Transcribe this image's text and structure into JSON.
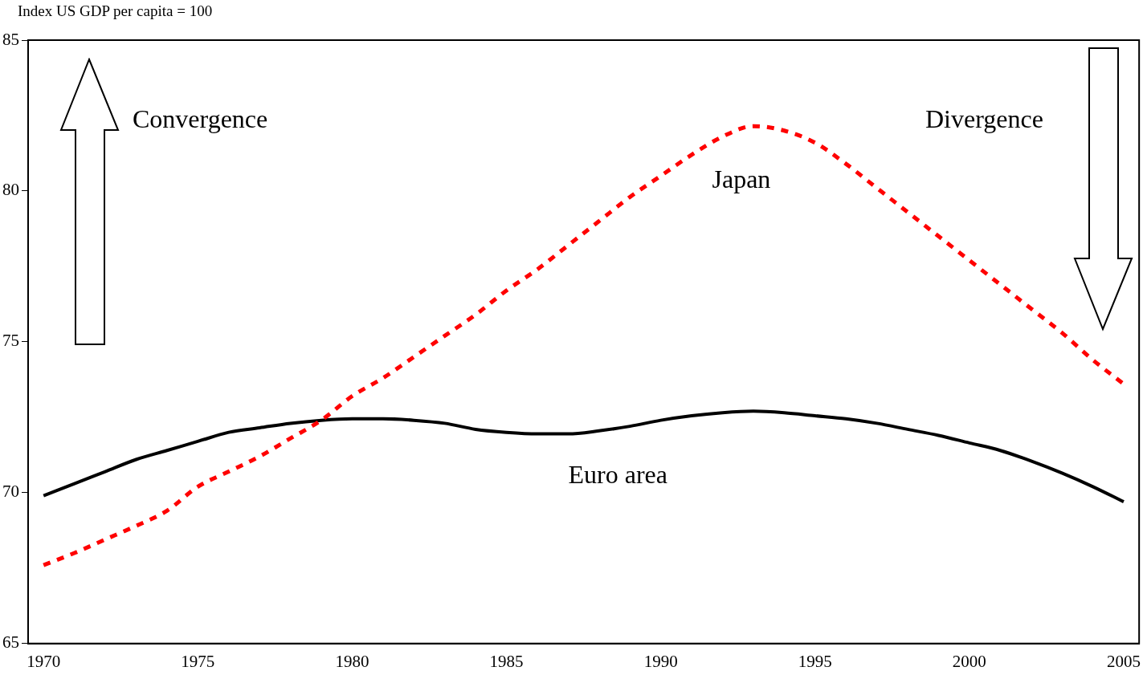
{
  "chart_data": {
    "type": "line",
    "ylabel": "Index US GDP per capita = 100",
    "categories": [
      "1970",
      null,
      null,
      null,
      null,
      "1975",
      null,
      null,
      null,
      null,
      "1980",
      null,
      null,
      null,
      null,
      "1985",
      null,
      null,
      null,
      null,
      "1990",
      null,
      null,
      null,
      null,
      "1995",
      null,
      null,
      null,
      null,
      "2000",
      null,
      null,
      null,
      null,
      "2005"
    ],
    "series": [
      {
        "name": "Japan",
        "color": "#ff0000",
        "line_style": "dashed",
        "values": [
          67.6,
          68.0,
          68.45,
          68.9,
          69.4,
          70.2,
          70.7,
          71.2,
          71.8,
          72.4,
          73.2,
          73.8,
          74.5,
          75.2,
          75.9,
          76.7,
          77.4,
          78.2,
          79.0,
          79.8,
          80.5,
          81.2,
          81.8,
          82.15,
          82.0,
          81.6,
          80.9,
          80.1,
          79.3,
          78.5,
          77.7,
          76.9,
          76.1,
          75.3,
          74.4,
          73.6
        ]
      },
      {
        "name": "Euro area",
        "color": "#000000",
        "line_style": "solid",
        "values": [
          69.9,
          70.3,
          70.7,
          71.1,
          71.4,
          71.7,
          72.0,
          72.15,
          72.3,
          72.4,
          72.45,
          72.45,
          72.4,
          72.3,
          72.1,
          72.0,
          71.95,
          71.95,
          72.05,
          72.2,
          72.4,
          72.55,
          72.65,
          72.7,
          72.65,
          72.55,
          72.45,
          72.3,
          72.1,
          71.9,
          71.65,
          71.4,
          71.05,
          70.65,
          70.2,
          69.7
        ]
      }
    ],
    "ylim": [
      65,
      85
    ],
    "yticks": [
      65,
      70,
      75,
      80,
      85
    ],
    "grid": false,
    "legend": false,
    "marker": "none",
    "annotations": [
      "Convergence",
      "Divergence"
    ]
  }
}
